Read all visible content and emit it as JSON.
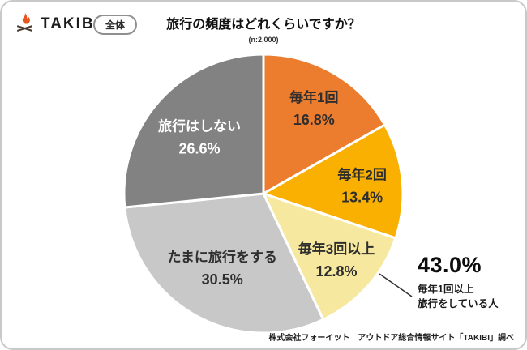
{
  "header": {
    "logo": "TAKIBI",
    "scope_badge": "全体",
    "title": "旅行の頻度はどれくらいですか？",
    "sample_note": "(n:2,000)"
  },
  "chart_data": {
    "type": "pie",
    "title": "旅行の頻度はどれくらいですか？",
    "sample_note": "(n:2,000)",
    "direction": "clockwise",
    "start_angle_deg": 0,
    "slices": [
      {
        "label": "毎年1回",
        "value": 16.8,
        "color": "#ED7D2E",
        "text_color": "#2e2e2e",
        "label_r": 0.72
      },
      {
        "label": "毎年2回",
        "value": 13.4,
        "color": "#F9B000",
        "text_color": "#2e2e2e",
        "label_r": 0.71
      },
      {
        "label": "毎年3回以上",
        "value": 12.8,
        "color": "#F7E8A0",
        "text_color": "#2e2e2e",
        "label_r": 0.7
      },
      {
        "label": "たまに旅行をする",
        "value": 30.5,
        "color": "#C8C8C8",
        "text_color": "#2e2e2e",
        "label_r": 0.6
      },
      {
        "label": "旅行はしない",
        "value": 26.6,
        "color": "#828282",
        "text_color": "#ffffff",
        "label_r": 0.62
      }
    ],
    "annotation": {
      "value": "43.0%",
      "line1": "毎年1回以上",
      "line2": "旅行をしている人"
    }
  },
  "footer": {
    "credit": "株式会社フォーイット　アウトドア総合情報サイト「TAKIBI」調べ"
  }
}
